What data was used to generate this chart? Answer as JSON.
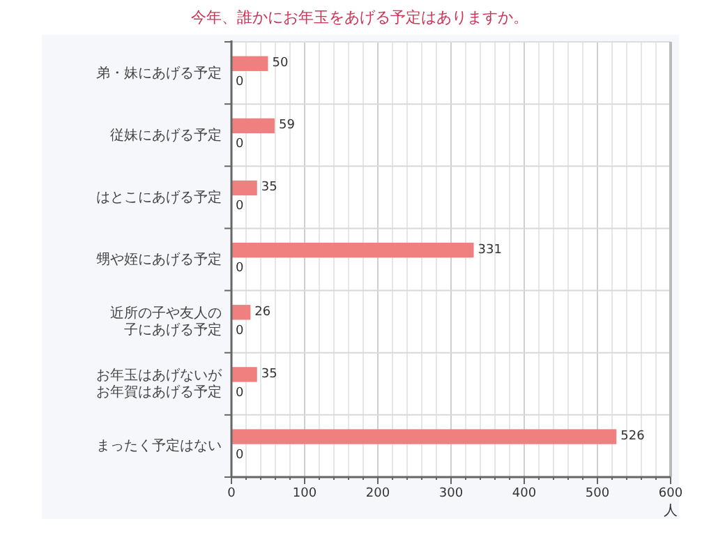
{
  "chart_data": {
    "type": "bar",
    "orientation": "horizontal",
    "title": "今年、誰かにお年玉をあげる予定はありますか。",
    "xlabel": "人",
    "categories": [
      "弟・妹にあげる予定",
      "従妹にあげる予定",
      "はとこにあげる予定",
      "甥や姪にあげる予定",
      "近所の子や友人の子にあげる予定",
      "お年玉はあげないがお年賀はあげる予定",
      "まったく予定はない"
    ],
    "series": [
      {
        "color": "#f08080",
        "values": [
          50,
          59,
          35,
          331,
          26,
          35,
          526
        ]
      },
      {
        "values": [
          0,
          0,
          0,
          0,
          0,
          0,
          0
        ]
      }
    ],
    "xlim": [
      0,
      600
    ],
    "xticks": [
      0,
      {
        "value": 20,
        "label": null
      },
      {
        "value": 40,
        "label": null
      },
      {
        "value": 60,
        "label": null
      },
      {
        "value": 80,
        "label": null
      },
      100,
      {
        "value": 120,
        "label": null
      },
      {
        "value": 140,
        "label": null
      },
      {
        "value": 160,
        "label": null
      },
      {
        "value": 180,
        "label": null
      },
      200,
      {
        "value": 220,
        "label": null
      },
      {
        "value": 240,
        "label": null
      },
      {
        "value": 260,
        "label": null
      },
      {
        "value": 280,
        "label": null
      },
      300,
      {
        "value": 320,
        "label": null
      },
      {
        "value": 340,
        "label": null
      },
      {
        "value": 360,
        "label": null
      },
      {
        "value": 380,
        "label": null
      },
      400,
      {
        "value": 420,
        "label": null
      },
      {
        "value": 440,
        "label": null
      },
      {
        "value": 460,
        "label": null
      },
      {
        "value": 480,
        "label": null
      },
      500,
      {
        "value": 520,
        "label": null
      },
      {
        "value": 540,
        "label": null
      },
      {
        "value": 560,
        "label": null
      },
      {
        "value": 580,
        "label": null
      },
      600
    ],
    "grid": true,
    "data_labels": true
  }
}
